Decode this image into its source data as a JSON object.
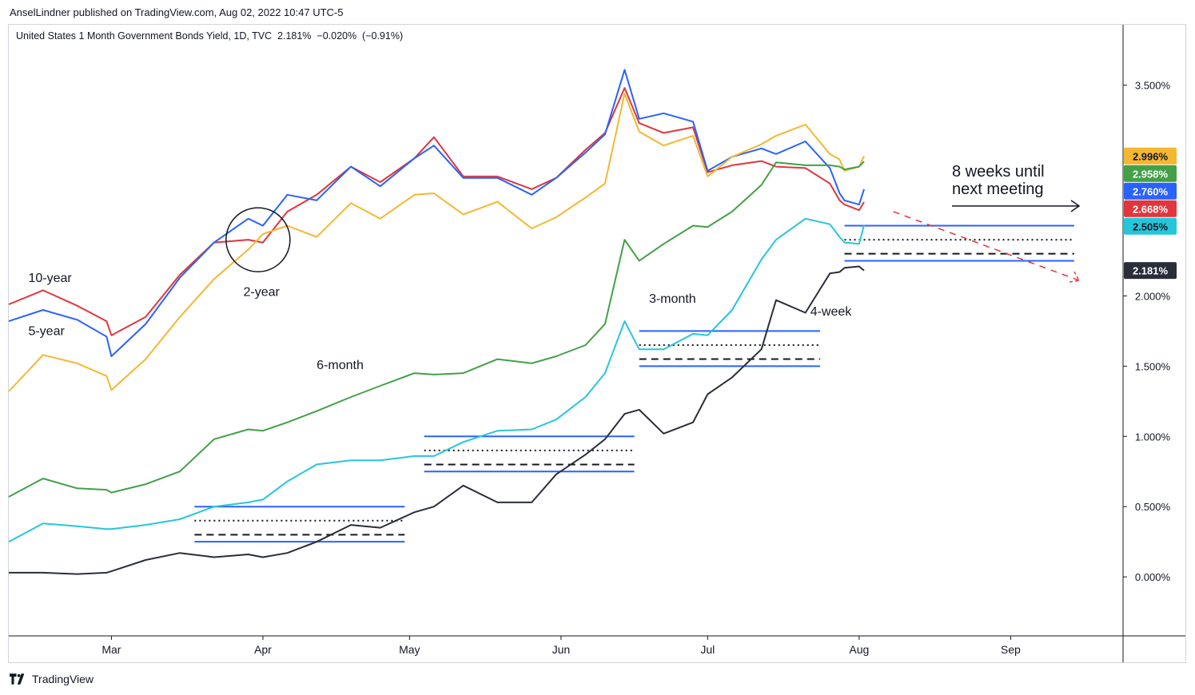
{
  "header": {
    "published": "AnselLindner published on TradingView.com, Aug 02, 2022 10:47 UTC-5"
  },
  "chart_title": {
    "symbol": "United States 1 Month Government Bonds Yield, 1D, TVC",
    "last": "2.181%",
    "change": "−0.020%",
    "change_pct": "(−0.91%)"
  },
  "footer": {
    "brand": "TradingView",
    "brand_icon": "tradingview-logo-icon"
  },
  "chart_data": {
    "type": "line",
    "xlabel": "",
    "ylabel": "",
    "x_ticks": [
      {
        "label": "Mar",
        "date": "2022-03-01"
      },
      {
        "label": "Apr",
        "date": "2022-04-01"
      },
      {
        "label": "May",
        "date": "2022-05-01"
      },
      {
        "label": "Jun",
        "date": "2022-06-01"
      },
      {
        "label": "Jul",
        "date": "2022-07-01"
      },
      {
        "label": "Aug",
        "date": "2022-08-01"
      },
      {
        "label": "Sep",
        "date": "2022-09-01"
      }
    ],
    "x_range": [
      "2022-02-08",
      "2022-09-24"
    ],
    "y_ticks": [
      {
        "label": "0.000%",
        "value": 0.0
      },
      {
        "label": "0.500%",
        "value": 0.5
      },
      {
        "label": "1.000%",
        "value": 1.0
      },
      {
        "label": "1.500%",
        "value": 1.5
      },
      {
        "label": "2.000%",
        "value": 2.0
      },
      {
        "label": "3.500%",
        "value": 3.5
      }
    ],
    "ylim": [
      -0.42,
      3.93
    ],
    "grid": false,
    "series": [
      {
        "name": "10-year",
        "color": "#e0363d",
        "last_label": "2.668%",
        "last_value": 2.668,
        "points": [
          [
            "2022-02-08",
            1.94
          ],
          [
            "2022-02-15",
            2.04
          ],
          [
            "2022-02-22",
            1.93
          ],
          [
            "2022-02-28",
            1.82
          ],
          [
            "2022-03-01",
            1.72
          ],
          [
            "2022-03-08",
            1.85
          ],
          [
            "2022-03-15",
            2.15
          ],
          [
            "2022-03-22",
            2.38
          ],
          [
            "2022-03-29",
            2.4
          ],
          [
            "2022-04-01",
            2.38
          ],
          [
            "2022-04-06",
            2.6
          ],
          [
            "2022-04-12",
            2.72
          ],
          [
            "2022-04-19",
            2.92
          ],
          [
            "2022-04-25",
            2.81
          ],
          [
            "2022-05-02",
            2.98
          ],
          [
            "2022-05-06",
            3.13
          ],
          [
            "2022-05-12",
            2.85
          ],
          [
            "2022-05-19",
            2.85
          ],
          [
            "2022-05-26",
            2.76
          ],
          [
            "2022-05-31",
            2.84
          ],
          [
            "2022-06-06",
            3.04
          ],
          [
            "2022-06-10",
            3.16
          ],
          [
            "2022-06-14",
            3.48
          ],
          [
            "2022-06-17",
            3.23
          ],
          [
            "2022-06-22",
            3.16
          ],
          [
            "2022-06-28",
            3.2
          ],
          [
            "2022-07-01",
            2.88
          ],
          [
            "2022-07-06",
            2.93
          ],
          [
            "2022-07-12",
            2.96
          ],
          [
            "2022-07-15",
            2.92
          ],
          [
            "2022-07-21",
            2.91
          ],
          [
            "2022-07-26",
            2.8
          ],
          [
            "2022-07-28",
            2.68
          ],
          [
            "2022-07-29",
            2.65
          ],
          [
            "2022-08-01",
            2.61
          ],
          [
            "2022-08-02",
            2.668
          ]
        ]
      },
      {
        "name": "5-year",
        "color": "#2962ff",
        "last_label": "2.760%",
        "last_value": 2.76,
        "points": [
          [
            "2022-02-08",
            1.82
          ],
          [
            "2022-02-15",
            1.9
          ],
          [
            "2022-02-22",
            1.83
          ],
          [
            "2022-02-28",
            1.71
          ],
          [
            "2022-03-01",
            1.57
          ],
          [
            "2022-03-08",
            1.8
          ],
          [
            "2022-03-15",
            2.13
          ],
          [
            "2022-03-22",
            2.38
          ],
          [
            "2022-03-29",
            2.55
          ],
          [
            "2022-04-01",
            2.5
          ],
          [
            "2022-04-06",
            2.72
          ],
          [
            "2022-04-12",
            2.68
          ],
          [
            "2022-04-19",
            2.92
          ],
          [
            "2022-04-25",
            2.78
          ],
          [
            "2022-05-02",
            2.98
          ],
          [
            "2022-05-06",
            3.07
          ],
          [
            "2022-05-12",
            2.84
          ],
          [
            "2022-05-19",
            2.84
          ],
          [
            "2022-05-26",
            2.72
          ],
          [
            "2022-05-31",
            2.84
          ],
          [
            "2022-06-06",
            3.02
          ],
          [
            "2022-06-10",
            3.15
          ],
          [
            "2022-06-14",
            3.61
          ],
          [
            "2022-06-17",
            3.26
          ],
          [
            "2022-06-22",
            3.3
          ],
          [
            "2022-06-28",
            3.24
          ],
          [
            "2022-07-01",
            2.89
          ],
          [
            "2022-07-06",
            2.99
          ],
          [
            "2022-07-12",
            3.05
          ],
          [
            "2022-07-15",
            3.01
          ],
          [
            "2022-07-21",
            3.1
          ],
          [
            "2022-07-26",
            2.91
          ],
          [
            "2022-07-28",
            2.73
          ],
          [
            "2022-07-29",
            2.68
          ],
          [
            "2022-08-01",
            2.65
          ],
          [
            "2022-08-02",
            2.76
          ]
        ]
      },
      {
        "name": "2-year",
        "color": "#f4b731",
        "last_label": "2.996%",
        "last_value": 2.996,
        "points": [
          [
            "2022-02-08",
            1.32
          ],
          [
            "2022-02-15",
            1.58
          ],
          [
            "2022-02-22",
            1.52
          ],
          [
            "2022-02-28",
            1.43
          ],
          [
            "2022-03-01",
            1.33
          ],
          [
            "2022-03-08",
            1.55
          ],
          [
            "2022-03-15",
            1.85
          ],
          [
            "2022-03-22",
            2.12
          ],
          [
            "2022-03-29",
            2.33
          ],
          [
            "2022-04-01",
            2.44
          ],
          [
            "2022-04-06",
            2.5
          ],
          [
            "2022-04-12",
            2.42
          ],
          [
            "2022-04-19",
            2.66
          ],
          [
            "2022-04-25",
            2.55
          ],
          [
            "2022-05-02",
            2.72
          ],
          [
            "2022-05-06",
            2.73
          ],
          [
            "2022-05-12",
            2.58
          ],
          [
            "2022-05-19",
            2.67
          ],
          [
            "2022-05-26",
            2.48
          ],
          [
            "2022-05-31",
            2.56
          ],
          [
            "2022-06-06",
            2.7
          ],
          [
            "2022-06-10",
            2.8
          ],
          [
            "2022-06-14",
            3.44
          ],
          [
            "2022-06-17",
            3.17
          ],
          [
            "2022-06-22",
            3.07
          ],
          [
            "2022-06-28",
            3.14
          ],
          [
            "2022-07-01",
            2.85
          ],
          [
            "2022-07-06",
            2.99
          ],
          [
            "2022-07-12",
            3.08
          ],
          [
            "2022-07-15",
            3.14
          ],
          [
            "2022-07-21",
            3.22
          ],
          [
            "2022-07-26",
            3.01
          ],
          [
            "2022-07-28",
            2.97
          ],
          [
            "2022-07-29",
            2.89
          ],
          [
            "2022-08-01",
            2.92
          ],
          [
            "2022-08-02",
            2.996
          ]
        ]
      },
      {
        "name": "6-month",
        "color": "#43a047",
        "last_label": "2.958%",
        "last_value": 2.958,
        "points": [
          [
            "2022-02-08",
            0.57
          ],
          [
            "2022-02-15",
            0.7
          ],
          [
            "2022-02-22",
            0.63
          ],
          [
            "2022-02-28",
            0.62
          ],
          [
            "2022-03-01",
            0.6
          ],
          [
            "2022-03-08",
            0.66
          ],
          [
            "2022-03-15",
            0.75
          ],
          [
            "2022-03-22",
            0.98
          ],
          [
            "2022-03-29",
            1.05
          ],
          [
            "2022-04-01",
            1.04
          ],
          [
            "2022-04-06",
            1.1
          ],
          [
            "2022-04-12",
            1.18
          ],
          [
            "2022-04-19",
            1.28
          ],
          [
            "2022-04-25",
            1.36
          ],
          [
            "2022-05-02",
            1.45
          ],
          [
            "2022-05-06",
            1.44
          ],
          [
            "2022-05-12",
            1.45
          ],
          [
            "2022-05-19",
            1.55
          ],
          [
            "2022-05-26",
            1.52
          ],
          [
            "2022-05-31",
            1.57
          ],
          [
            "2022-06-06",
            1.65
          ],
          [
            "2022-06-10",
            1.8
          ],
          [
            "2022-06-14",
            2.4
          ],
          [
            "2022-06-17",
            2.25
          ],
          [
            "2022-06-22",
            2.37
          ],
          [
            "2022-06-28",
            2.5
          ],
          [
            "2022-07-01",
            2.49
          ],
          [
            "2022-07-06",
            2.6
          ],
          [
            "2022-07-12",
            2.79
          ],
          [
            "2022-07-15",
            2.95
          ],
          [
            "2022-07-21",
            2.93
          ],
          [
            "2022-07-26",
            2.93
          ],
          [
            "2022-07-28",
            2.92
          ],
          [
            "2022-07-29",
            2.9
          ],
          [
            "2022-08-01",
            2.92
          ],
          [
            "2022-08-02",
            2.958
          ]
        ]
      },
      {
        "name": "3-month",
        "color": "#26c6da",
        "last_label": "2.505%",
        "last_value": 2.505,
        "points": [
          [
            "2022-02-08",
            0.25
          ],
          [
            "2022-02-15",
            0.38
          ],
          [
            "2022-02-22",
            0.36
          ],
          [
            "2022-02-28",
            0.34
          ],
          [
            "2022-03-01",
            0.34
          ],
          [
            "2022-03-08",
            0.37
          ],
          [
            "2022-03-15",
            0.41
          ],
          [
            "2022-03-22",
            0.5
          ],
          [
            "2022-03-29",
            0.53
          ],
          [
            "2022-04-01",
            0.55
          ],
          [
            "2022-04-06",
            0.68
          ],
          [
            "2022-04-12",
            0.8
          ],
          [
            "2022-04-19",
            0.83
          ],
          [
            "2022-04-25",
            0.83
          ],
          [
            "2022-05-02",
            0.86
          ],
          [
            "2022-05-06",
            0.86
          ],
          [
            "2022-05-12",
            0.96
          ],
          [
            "2022-05-19",
            1.04
          ],
          [
            "2022-05-26",
            1.05
          ],
          [
            "2022-05-31",
            1.12
          ],
          [
            "2022-06-06",
            1.28
          ],
          [
            "2022-06-10",
            1.45
          ],
          [
            "2022-06-14",
            1.82
          ],
          [
            "2022-06-17",
            1.62
          ],
          [
            "2022-06-22",
            1.62
          ],
          [
            "2022-06-28",
            1.73
          ],
          [
            "2022-07-01",
            1.72
          ],
          [
            "2022-07-06",
            1.9
          ],
          [
            "2022-07-12",
            2.26
          ],
          [
            "2022-07-15",
            2.4
          ],
          [
            "2022-07-21",
            2.55
          ],
          [
            "2022-07-26",
            2.51
          ],
          [
            "2022-07-28",
            2.42
          ],
          [
            "2022-07-29",
            2.38
          ],
          [
            "2022-08-01",
            2.37
          ],
          [
            "2022-08-02",
            2.505
          ]
        ]
      },
      {
        "name": "4-week",
        "color": "#2a2e39",
        "last_label": "2.181%",
        "last_value": 2.181,
        "points": [
          [
            "2022-02-08",
            0.03
          ],
          [
            "2022-02-15",
            0.03
          ],
          [
            "2022-02-22",
            0.02
          ],
          [
            "2022-02-28",
            0.03
          ],
          [
            "2022-03-01",
            0.04
          ],
          [
            "2022-03-08",
            0.12
          ],
          [
            "2022-03-15",
            0.17
          ],
          [
            "2022-03-22",
            0.14
          ],
          [
            "2022-03-29",
            0.16
          ],
          [
            "2022-04-01",
            0.14
          ],
          [
            "2022-04-06",
            0.17
          ],
          [
            "2022-04-12",
            0.25
          ],
          [
            "2022-04-19",
            0.37
          ],
          [
            "2022-04-25",
            0.35
          ],
          [
            "2022-05-02",
            0.46
          ],
          [
            "2022-05-06",
            0.5
          ],
          [
            "2022-05-12",
            0.65
          ],
          [
            "2022-05-19",
            0.53
          ],
          [
            "2022-05-26",
            0.53
          ],
          [
            "2022-05-31",
            0.73
          ],
          [
            "2022-06-06",
            0.87
          ],
          [
            "2022-06-10",
            0.98
          ],
          [
            "2022-06-14",
            1.16
          ],
          [
            "2022-06-17",
            1.19
          ],
          [
            "2022-06-22",
            1.02
          ],
          [
            "2022-06-28",
            1.1
          ],
          [
            "2022-07-01",
            1.3
          ],
          [
            "2022-07-06",
            1.42
          ],
          [
            "2022-07-12",
            1.62
          ],
          [
            "2022-07-15",
            1.97
          ],
          [
            "2022-07-21",
            1.88
          ],
          [
            "2022-07-26",
            2.16
          ],
          [
            "2022-07-28",
            2.17
          ],
          [
            "2022-07-29",
            2.2
          ],
          [
            "2022-08-01",
            2.21
          ],
          [
            "2022-08-02",
            2.181
          ]
        ]
      }
    ],
    "annotations": {
      "labels": [
        {
          "text": "10-year",
          "date": "2022-02-12",
          "value": 2.1
        },
        {
          "text": "5-year",
          "date": "2022-02-12",
          "value": 1.72
        },
        {
          "text": "2-year",
          "date": "2022-03-28",
          "value": 2.0
        },
        {
          "text": "6-month",
          "date": "2022-04-12",
          "value": 1.48
        },
        {
          "text": "3-month",
          "date": "2022-06-19",
          "value": 1.95
        },
        {
          "text": "4-week",
          "date": "2022-07-22",
          "value": 1.86
        }
      ],
      "meeting_note": {
        "line1": "8 weeks until",
        "line2": "next meeting",
        "date": "2022-08-20",
        "value": 2.85
      },
      "ranges": [
        {
          "from": "2022-03-18",
          "to": "2022-04-30",
          "top": 0.5,
          "dot": 0.4,
          "dash": 0.3,
          "bottom": 0.25
        },
        {
          "from": "2022-05-04",
          "to": "2022-06-16",
          "top": 1.0,
          "dot": 0.9,
          "dash": 0.8,
          "bottom": 0.75
        },
        {
          "from": "2022-06-17",
          "to": "2022-07-24",
          "top": 1.75,
          "dot": 1.65,
          "dash": 1.55,
          "bottom": 1.5
        },
        {
          "from": "2022-07-29",
          "to": "2022-09-14",
          "top": 2.5,
          "dot": 2.4,
          "dash": 2.3,
          "bottom": 2.25
        }
      ],
      "circle": {
        "date": "2022-03-31",
        "value": 2.4
      },
      "arrow": {
        "from": "2022-08-20",
        "to": "2022-09-15",
        "value": 2.64
      },
      "projection": {
        "from": "2022-08-08",
        "to": "2022-09-15",
        "from_value": 2.6,
        "to_value": 2.11
      }
    }
  }
}
